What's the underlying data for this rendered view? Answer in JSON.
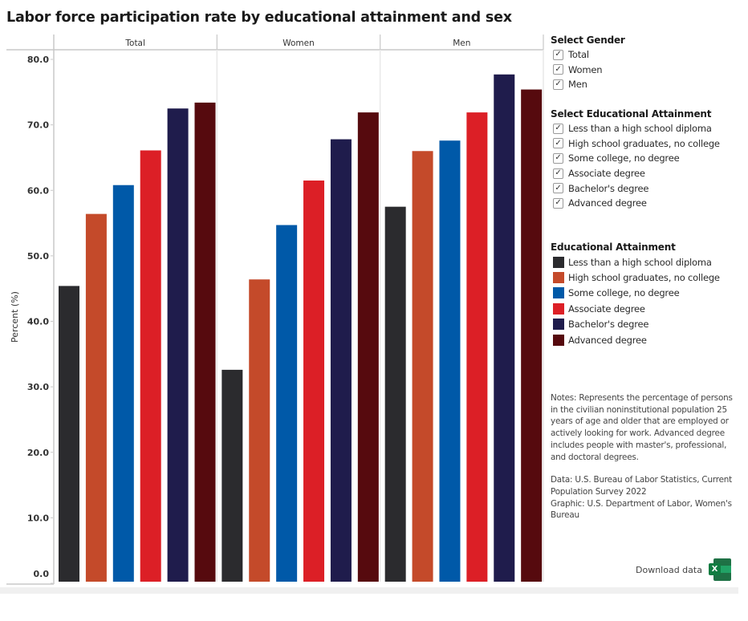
{
  "chart_data": {
    "type": "bar",
    "title": "Labor force participation rate by educational attainment and sex",
    "xlabel": "",
    "ylabel": "Percent (%)",
    "ylim": [
      0,
      80
    ],
    "yticks": [
      0,
      10,
      20,
      30,
      40,
      50,
      60,
      70,
      80
    ],
    "ytick_labels": [
      "0.0",
      "10.0",
      "20.0",
      "30.0",
      "40.0",
      "50.0",
      "60.0",
      "70.0",
      "80.0"
    ],
    "grid": false,
    "legend_position": "right",
    "panels": [
      "Total",
      "Women",
      "Men"
    ],
    "categories": [
      "Less than a high school diploma",
      "High school graduates, no college",
      "Some college, no degree",
      "Associate degree",
      "Bachelor's degree",
      "Advanced degree"
    ],
    "series": [
      {
        "name": "Total",
        "values": [
          45.4,
          56.4,
          60.8,
          66.1,
          72.5,
          73.4
        ]
      },
      {
        "name": "Women",
        "values": [
          32.6,
          46.4,
          54.7,
          61.5,
          67.8,
          71.9
        ]
      },
      {
        "name": "Men",
        "values": [
          57.5,
          66.0,
          67.6,
          71.9,
          77.7,
          75.4
        ]
      }
    ],
    "colors": [
      "#2b2b2e",
      "#c44a2a",
      "#0059a8",
      "#dc1f26",
      "#1f1c4c",
      "#560a0e"
    ]
  },
  "filters": {
    "gender": {
      "title": "Select Gender",
      "options": [
        {
          "label": "Total",
          "checked": true
        },
        {
          "label": "Women",
          "checked": true
        },
        {
          "label": "Men",
          "checked": true
        }
      ]
    },
    "education": {
      "title": "Select Educational Attainment",
      "options": [
        {
          "label": "Less than a high school diploma",
          "checked": true
        },
        {
          "label": "High school graduates, no college",
          "checked": true
        },
        {
          "label": "Some college, no degree",
          "checked": true
        },
        {
          "label": "Associate degree",
          "checked": true
        },
        {
          "label": "Bachelor's degree",
          "checked": true
        },
        {
          "label": "Advanced degree",
          "checked": true
        }
      ]
    }
  },
  "legend": {
    "title": "Educational Attainment",
    "items": [
      "Less than a high school diploma",
      "High school graduates, no college",
      "Some college, no degree",
      "Associate degree",
      "Bachelor's degree",
      "Advanced degree"
    ]
  },
  "notes": {
    "text": "Notes: Represents the percentage of persons in the civilian noninstitutional population 25 years of age and older that are employed or actively looking for work. Advanced degree includes people with master's, professional, and doctoral degrees.",
    "source": "Data: U.S. Bureau of Labor Statistics, Current Population Survey 2022",
    "graphic": "Graphic: U.S. Department of Labor, Women's Bureau"
  },
  "download": {
    "label": "Download data",
    "icon": "excel-icon",
    "icon_letter": "X"
  },
  "check_glyph": "✓"
}
